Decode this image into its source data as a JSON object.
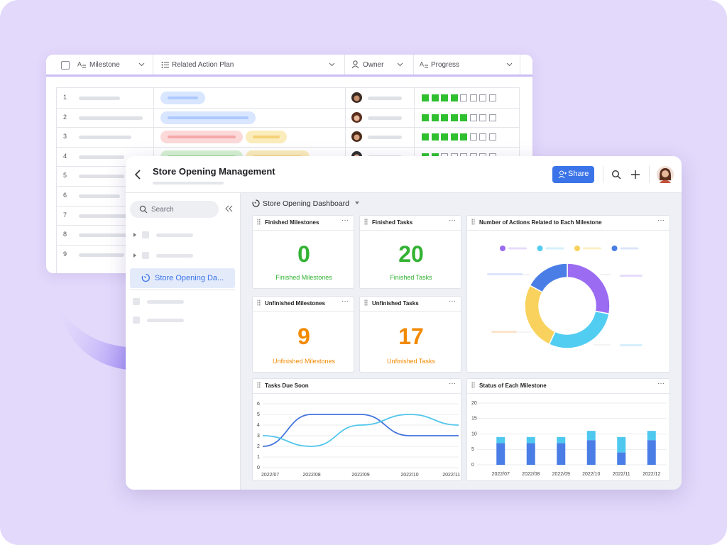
{
  "back_table": {
    "columns": [
      "Milestone",
      "Related Action Plan",
      "Owner",
      "Progress"
    ],
    "rows": [
      {
        "number": 1,
        "progress": 4
      },
      {
        "number": 2,
        "progress": 5
      },
      {
        "number": 3,
        "progress": 5
      },
      {
        "number": 4,
        "progress": 2
      },
      {
        "number": 5
      },
      {
        "number": 6
      },
      {
        "number": 7
      },
      {
        "number": 8
      },
      {
        "number": 9
      }
    ]
  },
  "app": {
    "title": "Store Opening Management",
    "share": "Share",
    "search": "Search",
    "sidebar_item": "Store Opening Da...",
    "dashboard": "Store Opening Dashboard",
    "cards": [
      {
        "title": "Finished Milestones",
        "value": 0,
        "label": "Finished Milestones",
        "color": "#33b233"
      },
      {
        "title": "Finished Tasks",
        "value": 20,
        "label": "Finished Tasks",
        "color": "#33b233"
      },
      {
        "title": "Unfinished Milestones",
        "value": 9,
        "label": "Unfinished Milestones",
        "color": "#f28a00"
      },
      {
        "title": "Unfinished Tasks",
        "value": 17,
        "label": "Unfinished Tasks",
        "color": "#f28a00"
      }
    ]
  },
  "chart_data": [
    {
      "type": "pie",
      "title": "Number of Actions Related to Each Milestone",
      "values": [
        28,
        29,
        26,
        17
      ],
      "colors": [
        "#9b6cf2",
        "#52cdf2",
        "#f8d25c",
        "#4a7de6"
      ]
    },
    {
      "type": "line",
      "title": "Tasks Due Soon",
      "categories": [
        "2022/07",
        "2022/08",
        "2022/09",
        "2022/10",
        "2022/11"
      ],
      "series": [
        {
          "color": "#4273de",
          "values": [
            2,
            5,
            5,
            3,
            3
          ]
        },
        {
          "color": "#52c6ec",
          "values": [
            3,
            2,
            4,
            5,
            4
          ]
        }
      ],
      "ylim": [
        0,
        6
      ],
      "yticks": [
        0,
        1,
        2,
        3,
        4,
        5,
        6
      ],
      "grid": true
    },
    {
      "type": "bar",
      "title": "Status of Each Milestone",
      "categories": [
        "2022/07",
        "2022/08",
        "2022/09",
        "2022/10",
        "2022/11",
        "2022/12"
      ],
      "series": [
        {
          "color": "#4a7de6",
          "values": [
            7,
            7,
            7,
            8,
            4,
            8
          ]
        },
        {
          "color": "#4fc8ef",
          "values": [
            2,
            2,
            2,
            3,
            5,
            3
          ]
        }
      ],
      "stacked": true,
      "ylim": [
        0,
        20
      ],
      "yticks": [
        0,
        5,
        10,
        15,
        20
      ],
      "grid": true
    }
  ]
}
